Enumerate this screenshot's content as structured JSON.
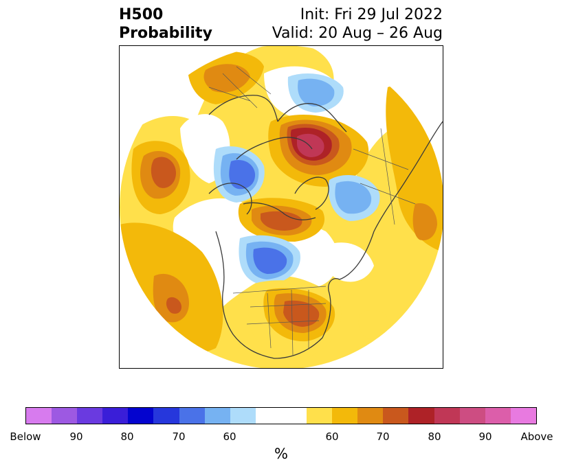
{
  "header": {
    "title_line1": "H500",
    "title_line2": "Probability",
    "init_text": "Init: Fri 29 Jul 2022",
    "valid_text": "Valid: 20 Aug – 26 Aug"
  },
  "map": {
    "projection": "north polar stereographic",
    "coastline_color": "#3a3a3a",
    "anomalies": [
      {
        "region": "Siberia / Kara Sea",
        "category": "above",
        "level": 85
      },
      {
        "region": "North Atlantic / Scandinavia",
        "category": "above",
        "level": 65
      },
      {
        "region": "North Pacific",
        "category": "above",
        "level": 70
      },
      {
        "region": "East Siberia / Beaufort Sea",
        "category": "below",
        "level": 75
      },
      {
        "region": "Greenland Sea",
        "category": "below",
        "level": 65
      },
      {
        "region": "Central Canada / Hudson Bay",
        "category": "below",
        "level": 75
      },
      {
        "region": "Canadian Arctic",
        "category": "above",
        "level": 70
      },
      {
        "region": "Eastern United States",
        "category": "above",
        "level": 75
      },
      {
        "region": "Subtropical Pacific",
        "category": "above",
        "level": 70
      }
    ]
  },
  "colorbar": {
    "colors": [
      "#d77bee",
      "#9d59e2",
      "#6a3ae0",
      "#3a1ed8",
      "#0404cf",
      "#2637dc",
      "#4a72e8",
      "#76b2f2",
      "#aedcfa",
      "#ffffff",
      "#ffffff",
      "#ffe04b",
      "#f3b90a",
      "#e08a12",
      "#c9581d",
      "#ae2227",
      "#c03756",
      "#cd4d82",
      "#dc5eaa",
      "#e87ae0"
    ],
    "tick_labels": [
      "Below",
      "90",
      "80",
      "70",
      "60",
      "60",
      "70",
      "80",
      "90",
      "Above"
    ],
    "unit_label": "%"
  }
}
